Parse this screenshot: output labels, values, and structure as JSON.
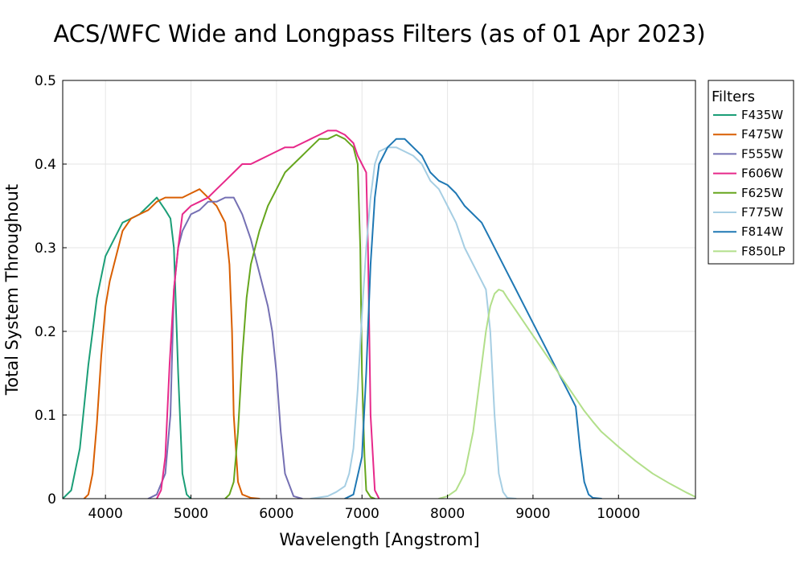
{
  "chart_data": {
    "type": "line",
    "title": "ACS/WFC Wide and Longpass Filters (as of 01 Apr 2023)",
    "xlabel": "Wavelength [Angstrom]",
    "ylabel": "Total System Throughout",
    "xlim": [
      3500,
      10900
    ],
    "ylim": [
      0,
      0.5
    ],
    "x_ticks": [
      4000,
      5000,
      6000,
      7000,
      8000,
      9000,
      10000
    ],
    "x_tick_labels": [
      "4000",
      "5000",
      "6000",
      "7000",
      "8000",
      "9000",
      "10000"
    ],
    "y_ticks": [
      0,
      0.1,
      0.2,
      0.3,
      0.4,
      0.5
    ],
    "y_tick_labels": [
      "0",
      "0.1",
      "0.2",
      "0.3",
      "0.4",
      "0.5"
    ],
    "grid": true,
    "legend": {
      "title": "Filters",
      "position": "right"
    },
    "series": [
      {
        "name": "F435W",
        "color": "#1b9e77",
        "x": [
          3500,
          3600,
          3700,
          3800,
          3900,
          4000,
          4100,
          4200,
          4300,
          4400,
          4500,
          4600,
          4700,
          4760,
          4800,
          4850,
          4900,
          4950,
          5000
        ],
        "y": [
          0.0,
          0.01,
          0.06,
          0.16,
          0.24,
          0.29,
          0.31,
          0.33,
          0.335,
          0.34,
          0.35,
          0.36,
          0.345,
          0.335,
          0.3,
          0.15,
          0.03,
          0.005,
          0.0
        ]
      },
      {
        "name": "F475W",
        "color": "#d95f02",
        "x": [
          3750,
          3800,
          3850,
          3900,
          3950,
          4000,
          4050,
          4100,
          4200,
          4300,
          4400,
          4500,
          4600,
          4700,
          4800,
          4900,
          5000,
          5100,
          5200,
          5300,
          5400,
          5450,
          5480,
          5500,
          5550,
          5600,
          5700,
          5800
        ],
        "y": [
          0.0,
          0.005,
          0.03,
          0.09,
          0.17,
          0.23,
          0.26,
          0.28,
          0.32,
          0.335,
          0.34,
          0.345,
          0.355,
          0.36,
          0.36,
          0.36,
          0.365,
          0.37,
          0.36,
          0.35,
          0.33,
          0.28,
          0.2,
          0.1,
          0.02,
          0.005,
          0.001,
          0.0
        ]
      },
      {
        "name": "F555W",
        "color": "#7570b3",
        "x": [
          4500,
          4600,
          4700,
          4760,
          4800,
          4850,
          4900,
          5000,
          5100,
          5200,
          5300,
          5400,
          5500,
          5600,
          5700,
          5800,
          5900,
          5950,
          6000,
          6050,
          6100,
          6200,
          6300
        ],
        "y": [
          0.0,
          0.005,
          0.03,
          0.1,
          0.25,
          0.3,
          0.32,
          0.34,
          0.345,
          0.355,
          0.355,
          0.36,
          0.36,
          0.34,
          0.31,
          0.27,
          0.23,
          0.2,
          0.15,
          0.08,
          0.03,
          0.003,
          0.0
        ]
      },
      {
        "name": "F606W",
        "color": "#e7298a",
        "x": [
          4600,
          4650,
          4700,
          4750,
          4800,
          4850,
          4900,
          5000,
          5100,
          5200,
          5300,
          5400,
          5500,
          5600,
          5700,
          5800,
          5900,
          6000,
          6100,
          6200,
          6300,
          6400,
          6500,
          6600,
          6700,
          6800,
          6900,
          6950,
          7000,
          7050,
          7070,
          7100,
          7150,
          7200
        ],
        "y": [
          0.0,
          0.01,
          0.05,
          0.16,
          0.25,
          0.3,
          0.34,
          0.35,
          0.355,
          0.36,
          0.37,
          0.38,
          0.39,
          0.4,
          0.4,
          0.405,
          0.41,
          0.415,
          0.42,
          0.42,
          0.425,
          0.43,
          0.435,
          0.44,
          0.44,
          0.435,
          0.425,
          0.41,
          0.4,
          0.39,
          0.3,
          0.1,
          0.01,
          0.0
        ]
      },
      {
        "name": "F625W",
        "color": "#66a61e",
        "x": [
          5400,
          5450,
          5500,
          5550,
          5600,
          5650,
          5700,
          5750,
          5800,
          5900,
          6000,
          6100,
          6200,
          6300,
          6400,
          6500,
          6600,
          6700,
          6800,
          6900,
          6950,
          6980,
          7000,
          7030,
          7050,
          7100,
          7150
        ],
        "y": [
          0.0,
          0.005,
          0.02,
          0.08,
          0.17,
          0.24,
          0.28,
          0.3,
          0.32,
          0.35,
          0.37,
          0.39,
          0.4,
          0.41,
          0.42,
          0.43,
          0.43,
          0.435,
          0.43,
          0.42,
          0.4,
          0.3,
          0.15,
          0.05,
          0.01,
          0.002,
          0.0
        ]
      },
      {
        "name": "F775W",
        "color": "#a6cee3",
        "x": [
          6400,
          6600,
          6700,
          6800,
          6850,
          6900,
          6950,
          7000,
          7050,
          7100,
          7150,
          7200,
          7300,
          7400,
          7500,
          7600,
          7700,
          7800,
          7900,
          8000,
          8100,
          8200,
          8300,
          8400,
          8450,
          8500,
          8550,
          8600,
          8650,
          8700,
          8800
        ],
        "y": [
          0.0,
          0.003,
          0.008,
          0.015,
          0.03,
          0.06,
          0.13,
          0.22,
          0.3,
          0.36,
          0.4,
          0.415,
          0.42,
          0.42,
          0.415,
          0.41,
          0.4,
          0.38,
          0.37,
          0.35,
          0.33,
          0.3,
          0.28,
          0.26,
          0.25,
          0.2,
          0.1,
          0.03,
          0.008,
          0.001,
          0.0
        ]
      },
      {
        "name": "F814W",
        "color": "#1f78b4",
        "x": [
          6800,
          6900,
          7000,
          7050,
          7100,
          7150,
          7200,
          7300,
          7400,
          7500,
          7600,
          7700,
          7800,
          7900,
          8000,
          8100,
          8200,
          8300,
          8400,
          8500,
          8600,
          8700,
          8800,
          8900,
          9000,
          9100,
          9200,
          9300,
          9400,
          9500,
          9550,
          9600,
          9650,
          9700,
          9800
        ],
        "y": [
          0.0,
          0.005,
          0.05,
          0.15,
          0.28,
          0.36,
          0.4,
          0.42,
          0.43,
          0.43,
          0.42,
          0.41,
          0.39,
          0.38,
          0.375,
          0.365,
          0.35,
          0.34,
          0.33,
          0.31,
          0.29,
          0.27,
          0.25,
          0.23,
          0.21,
          0.19,
          0.17,
          0.15,
          0.13,
          0.11,
          0.06,
          0.02,
          0.005,
          0.001,
          0.0
        ]
      },
      {
        "name": "F850LP",
        "color": "#b2df8a",
        "x": [
          7900,
          8000,
          8100,
          8200,
          8300,
          8350,
          8400,
          8450,
          8500,
          8550,
          8600,
          8650,
          8700,
          8800,
          8900,
          9000,
          9100,
          9200,
          9300,
          9400,
          9500,
          9600,
          9700,
          9800,
          10000,
          10200,
          10400,
          10600,
          10800,
          10900
        ],
        "y": [
          0.0,
          0.003,
          0.01,
          0.03,
          0.08,
          0.12,
          0.16,
          0.2,
          0.23,
          0.245,
          0.25,
          0.248,
          0.24,
          0.225,
          0.21,
          0.195,
          0.18,
          0.165,
          0.15,
          0.135,
          0.12,
          0.105,
          0.092,
          0.08,
          0.062,
          0.045,
          0.03,
          0.018,
          0.007,
          0.002
        ]
      }
    ]
  }
}
